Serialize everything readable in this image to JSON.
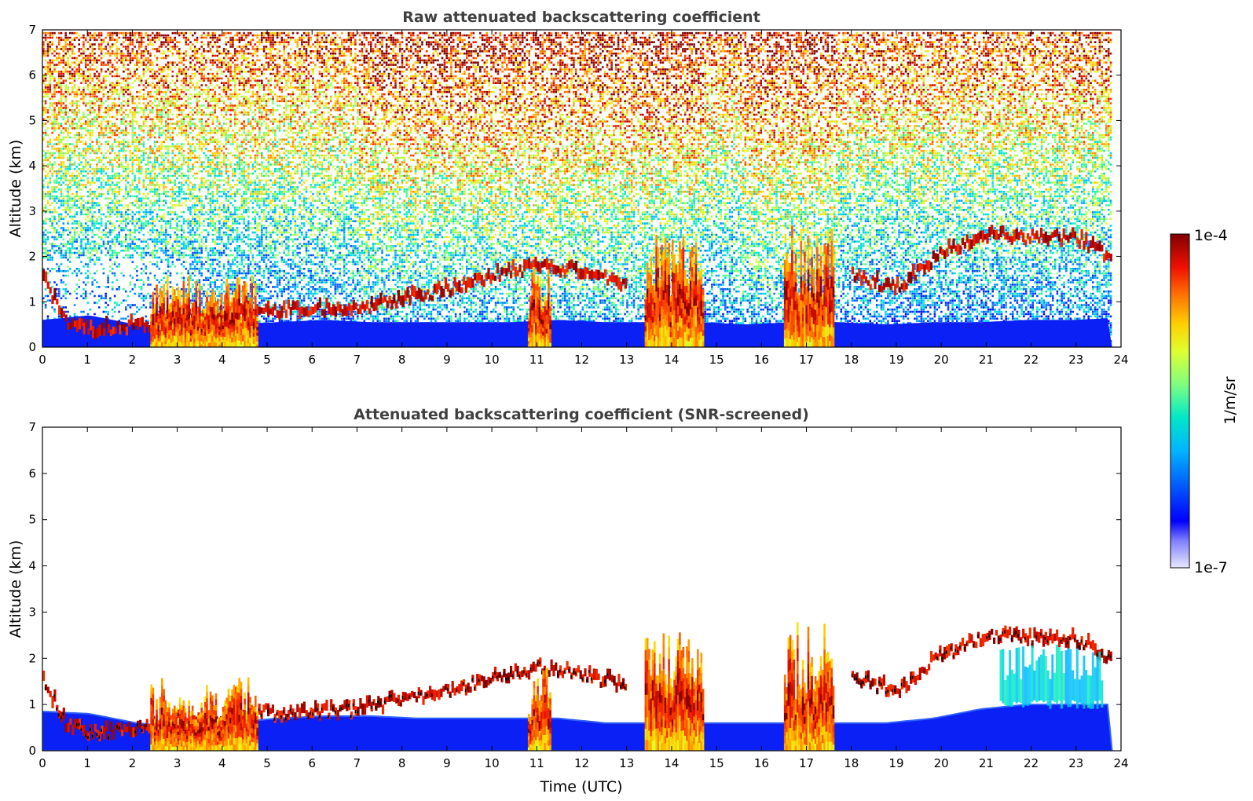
{
  "chart_data": [
    {
      "type": "heatmap",
      "title": "Raw attenuated backscattering coefficient",
      "xlabel": "",
      "ylabel": "Altitude (km)",
      "xlim": [
        0,
        24
      ],
      "ylim": [
        0,
        7
      ],
      "x_ticks": [
        "0",
        "1",
        "2",
        "3",
        "4",
        "5",
        "6",
        "7",
        "8",
        "9",
        "10",
        "11",
        "12",
        "13",
        "14",
        "15",
        "16",
        "17",
        "18",
        "19",
        "20",
        "21",
        "22",
        "23",
        "24"
      ],
      "y_ticks": [
        "0",
        "1",
        "2",
        "3",
        "4",
        "5",
        "6",
        "7"
      ],
      "colormap": "jet",
      "background_noise": "dense speckle over the full domain, blue at low altitude grading to yellow/red aloft",
      "features": [
        {
          "kind": "boundary_layer",
          "x": [
            0.0,
            24.0
          ],
          "y_top": [
            0.6,
            0.7,
            0.5,
            0.45,
            0.5,
            0.55,
            0.6,
            0.55,
            0.55,
            0.55,
            0.55,
            0.6,
            0.55,
            0.55,
            0.55,
            0.5,
            0.55,
            0.55,
            0.5,
            0.55,
            0.55,
            0.6,
            0.6,
            0.65
          ]
        },
        {
          "kind": "cloud_layer",
          "x": [
            0.0,
            0.5,
            1.0,
            1.5,
            2.0,
            2.5,
            3.0,
            3.5,
            4.0,
            4.5,
            5.0
          ],
          "y": [
            1.4,
            0.5,
            0.28,
            0.32,
            0.38,
            0.4,
            0.65,
            0.55,
            0.55,
            0.7,
            0.8
          ]
        },
        {
          "kind": "cloud_layer",
          "x": [
            5.0,
            6.0,
            7.0,
            8.0,
            9.0,
            10.0,
            11.0,
            12.0,
            13.0
          ],
          "y": [
            0.7,
            0.75,
            0.8,
            1.0,
            1.2,
            1.5,
            1.7,
            1.6,
            1.3
          ]
        },
        {
          "kind": "precipitation",
          "x": [
            2.4,
            4.8
          ],
          "y": [
            0.0,
            1.6
          ]
        },
        {
          "kind": "precipitation",
          "x": [
            10.8,
            11.3
          ],
          "y": [
            0.0,
            1.8
          ]
        },
        {
          "kind": "precipitation",
          "x": [
            13.4,
            14.7
          ],
          "y": [
            0.0,
            2.6
          ]
        },
        {
          "kind": "precipitation",
          "x": [
            16.5,
            17.6
          ],
          "y": [
            0.0,
            2.8
          ]
        },
        {
          "kind": "cloud_layer",
          "x": [
            18.0,
            19.0,
            20.0,
            21.0,
            22.0,
            23.0,
            23.8
          ],
          "y": [
            1.5,
            1.2,
            2.0,
            2.4,
            2.35,
            2.3,
            1.9
          ]
        }
      ]
    },
    {
      "type": "heatmap",
      "title": "Attenuated backscattering coefficient (SNR-screened)",
      "xlabel": "Time (UTC)",
      "ylabel": "Altitude (km)",
      "xlim": [
        0,
        24
      ],
      "ylim": [
        0,
        7
      ],
      "x_ticks": [
        "0",
        "1",
        "2",
        "3",
        "4",
        "5",
        "6",
        "7",
        "8",
        "9",
        "10",
        "11",
        "12",
        "13",
        "14",
        "15",
        "16",
        "17",
        "18",
        "19",
        "20",
        "21",
        "22",
        "23",
        "24"
      ],
      "y_ticks": [
        "0",
        "1",
        "2",
        "3",
        "4",
        "5",
        "6",
        "7"
      ],
      "colormap": "jet",
      "background_noise": "removed (white) except retained signal",
      "features": [
        {
          "kind": "boundary_layer",
          "x": [
            0.0,
            24.0
          ],
          "y_top": [
            0.85,
            0.8,
            0.6,
            0.5,
            0.6,
            0.7,
            0.75,
            0.75,
            0.7,
            0.7,
            0.7,
            0.7,
            0.6,
            0.6,
            0.6,
            0.6,
            0.6,
            0.6,
            0.6,
            0.7,
            0.9,
            1.0,
            1.0,
            1.0
          ]
        },
        {
          "kind": "cloud_layer",
          "x": [
            0.0,
            0.5,
            1.0,
            1.5,
            2.0,
            2.5,
            3.0,
            3.5,
            4.0,
            4.5,
            5.0
          ],
          "y": [
            1.4,
            0.5,
            0.28,
            0.32,
            0.38,
            0.4,
            0.65,
            0.55,
            0.55,
            0.7,
            0.8
          ]
        },
        {
          "kind": "cloud_layer",
          "x": [
            5.0,
            6.0,
            7.0,
            8.0,
            9.0,
            10.0,
            11.0,
            12.0,
            13.0
          ],
          "y": [
            0.7,
            0.75,
            0.8,
            1.0,
            1.2,
            1.5,
            1.7,
            1.6,
            1.3
          ]
        },
        {
          "kind": "precipitation",
          "x": [
            2.4,
            4.8
          ],
          "y": [
            0.0,
            1.6
          ]
        },
        {
          "kind": "precipitation",
          "x": [
            10.8,
            11.3
          ],
          "y": [
            0.0,
            1.8
          ]
        },
        {
          "kind": "precipitation",
          "x": [
            13.4,
            14.7
          ],
          "y": [
            0.0,
            2.6
          ]
        },
        {
          "kind": "precipitation",
          "x": [
            16.5,
            17.6
          ],
          "y": [
            0.0,
            2.8
          ]
        },
        {
          "kind": "cloud_layer",
          "x": [
            18.0,
            19.0,
            20.0,
            21.0,
            22.0,
            23.0,
            23.8
          ],
          "y": [
            1.5,
            1.2,
            2.0,
            2.4,
            2.35,
            2.3,
            1.9
          ]
        },
        {
          "kind": "aerosol_cloud",
          "x": [
            21.3,
            23.6
          ],
          "y": [
            0.9,
            2.3
          ]
        }
      ]
    }
  ],
  "colorbar": {
    "label": "1/m/sr",
    "min_label": "1e-7",
    "max_label": "1e-4",
    "scale": "log",
    "colormap": "jet"
  }
}
